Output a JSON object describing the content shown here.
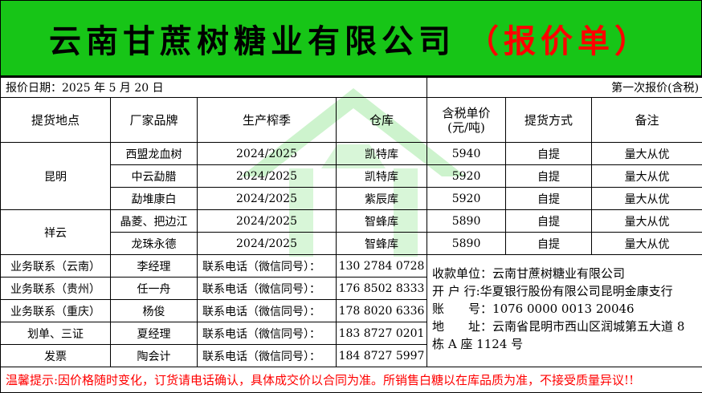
{
  "title": {
    "company": "云南甘蔗树糖业有限公司",
    "suffix": "（报价单）"
  },
  "date_label": "报价日期：2025 年 5 月 20 日",
  "quote_round": "第一次报价(含税)",
  "headers": [
    "提货地点",
    "厂家品牌",
    "生产榨季",
    "仓库",
    "含税单价",
    "(元/吨)",
    "提货方式",
    "备注"
  ],
  "groups": [
    {
      "location": "昆明",
      "rows": [
        {
          "brand": "西盟龙血树",
          "season": "2024/2025",
          "warehouse": "凯特库",
          "price": "5940",
          "pickup": "自提",
          "note": "量大从优"
        },
        {
          "brand": "中云勐腊",
          "season": "2024/2025",
          "warehouse": "凯特库",
          "price": "5920",
          "pickup": "自提",
          "note": "量大从优"
        },
        {
          "brand": "勐堆康白",
          "season": "2024/2025",
          "warehouse": "紫辰库",
          "price": "5920",
          "pickup": "自提",
          "note": "量大从优"
        }
      ]
    },
    {
      "location": "祥云",
      "rows": [
        {
          "brand": "晶菱、把边江",
          "season": "2024/2025",
          "warehouse": "智蜂库",
          "price": "5890",
          "pickup": "自提",
          "note": "量大从优"
        },
        {
          "brand": "龙珠永德",
          "season": "2024/2025",
          "warehouse": "智蜂库",
          "price": "5890",
          "pickup": "自提",
          "note": "量大从优"
        }
      ]
    }
  ],
  "contacts": [
    {
      "role": "业务联系（云南）",
      "name": "李经理",
      "label": "联系电话（微信同号）：",
      "phone": "130 2784 0728"
    },
    {
      "role": "业务联系（贵州）",
      "name": "任一舟",
      "label": "联系电话（微信同号）：",
      "phone": "176 8502 8333"
    },
    {
      "role": "业务联系（重庆）",
      "name": "杨俊",
      "label": "联系电话（微信同号）：",
      "phone": "178 8020 6336"
    },
    {
      "role": "划单、三证",
      "name": "夏经理",
      "label": "联系电话（微信同号）：",
      "phone": "183 8727 0201"
    },
    {
      "role": "发票",
      "name": "陶会计",
      "label": "联系电话（微信同号）：",
      "phone": "184 8727 5997"
    }
  ],
  "payment": {
    "payee": "收款单位：云南甘蔗树糖业有限公司",
    "bank": "开 户 行:华夏银行股份有限公司昆明金康支行",
    "account": "账　　号：1076 0000 0013 20046",
    "address": "地　　址：云南省昆明市西山区润城第五大道 8 栋 A 座 1124 号"
  },
  "notice": "温馨提示:因价格随时变化，订货请电话确认，具体成交价以合同为准。所销售白糖以在库品质为准，不接受质量异议!!",
  "colors": {
    "banner": "#17c517",
    "accent_red": "#ff0000",
    "watermark": "#c8f0c8"
  }
}
